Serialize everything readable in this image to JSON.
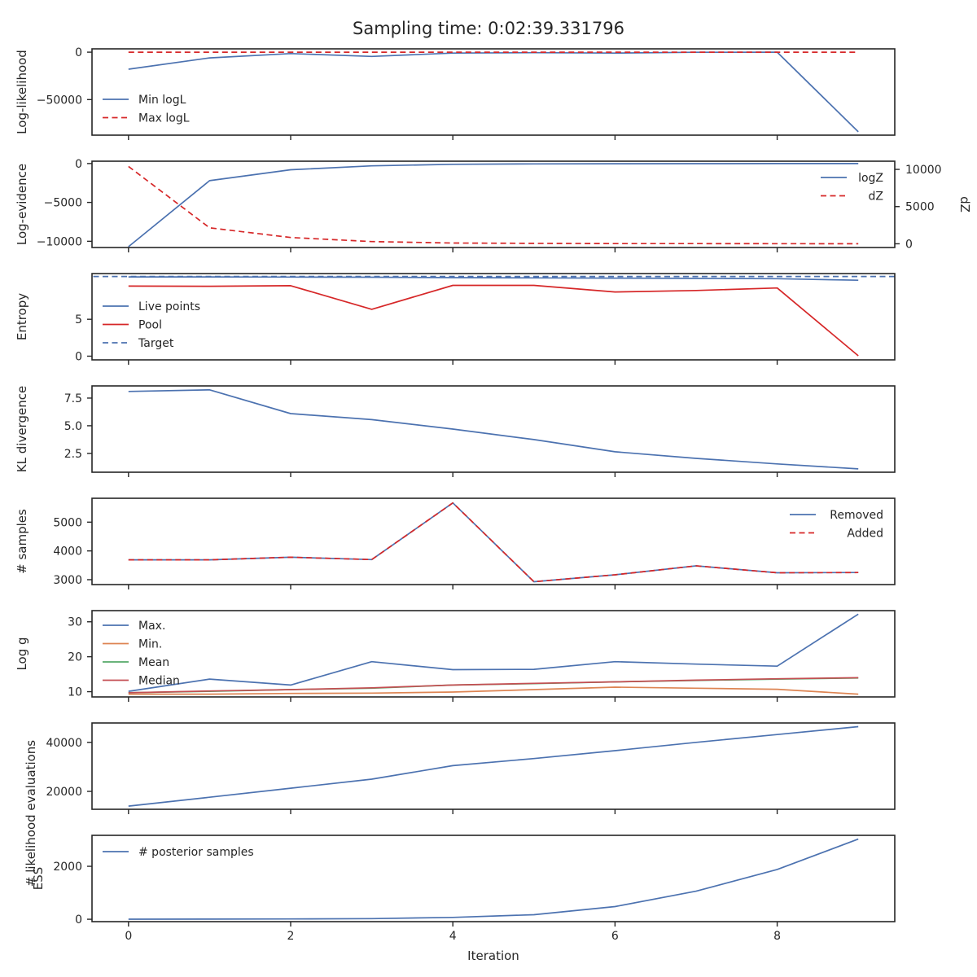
{
  "figure": {
    "title": "Sampling time: 0:02:39.331796",
    "xlabel": "Iteration",
    "x_ticks": [
      0,
      2,
      4,
      6,
      8
    ],
    "xlim": [
      -0.45,
      9.45
    ]
  },
  "colors": {
    "blue": "#4c72b0",
    "red": "#d62728",
    "orange": "#dd8452",
    "green": "#55a868",
    "brick": "#c44e52"
  },
  "chart_data": [
    {
      "type": "line",
      "ylabel": "Log-likelihood",
      "ylim": [
        -87500,
        3500
      ],
      "yticks": [
        0,
        -50000
      ],
      "ytick_labels": [
        "0",
        "−50000"
      ],
      "legend_position": "lower-left",
      "x": [
        0,
        1,
        2,
        3,
        4,
        5,
        6,
        7,
        8,
        9
      ],
      "series": [
        {
          "name": "Min logL",
          "style": "solid",
          "color": "#4c72b0",
          "values": [
            -18000,
            -6000,
            -1500,
            -4500,
            -1000,
            -500,
            -1000,
            -100,
            -50,
            -84000
          ]
        },
        {
          "name": "Max logL",
          "style": "dashed",
          "color": "#d62728",
          "values": [
            0,
            0,
            0,
            0,
            0,
            0,
            0,
            0,
            0,
            0
          ]
        }
      ]
    },
    {
      "type": "line",
      "ylabel": "Log-evidence",
      "ylabel_right": "dZ",
      "ylim": [
        -10800,
        300
      ],
      "yticks": [
        0,
        -5000,
        -10000
      ],
      "ytick_labels": [
        "0",
        "−5000",
        "−10000"
      ],
      "ylim_right": [
        -500,
        11100
      ],
      "yticks_right": [
        10000,
        5000,
        0
      ],
      "ytick_labels_right": [
        "10000",
        "5000",
        "0"
      ],
      "legend_position": "upper-right",
      "x": [
        0,
        1,
        2,
        3,
        4,
        5,
        6,
        7,
        8,
        9
      ],
      "series": [
        {
          "name": "logZ",
          "style": "solid",
          "color": "#4c72b0",
          "axis": "left",
          "values": [
            -10700,
            -2200,
            -800,
            -300,
            -100,
            -50,
            -20,
            -10,
            -5,
            -2
          ]
        },
        {
          "name": "dZ",
          "style": "dashed",
          "color": "#d62728",
          "axis": "right",
          "values": [
            10400,
            2150,
            850,
            300,
            100,
            60,
            30,
            20,
            10,
            5
          ]
        }
      ]
    },
    {
      "type": "line",
      "ylabel": "Entropy",
      "ylim": [
        -0.5,
        11.2
      ],
      "yticks": [
        0,
        5
      ],
      "ytick_labels": [
        "0",
        "5"
      ],
      "legend_position": "lower-left",
      "x": [
        0,
        1,
        2,
        3,
        4,
        5,
        6,
        7,
        8,
        9
      ],
      "series": [
        {
          "name": "Live points",
          "style": "solid",
          "color": "#4c72b0",
          "values": [
            10.75,
            10.75,
            10.72,
            10.7,
            10.65,
            10.62,
            10.58,
            10.55,
            10.5,
            10.3
          ]
        },
        {
          "name": "Pool",
          "style": "solid",
          "color": "#d62728",
          "values": [
            9.5,
            9.48,
            9.55,
            6.35,
            9.6,
            9.6,
            8.7,
            8.9,
            9.25,
            0.05
          ]
        },
        {
          "name": "Target",
          "style": "dashed",
          "color": "#4c72b0",
          "hline": 10.8
        }
      ]
    },
    {
      "type": "line",
      "ylabel": "KL divergence",
      "ylim": [
        0.8,
        8.6
      ],
      "yticks": [
        2.5,
        5.0,
        7.5
      ],
      "ytick_labels": [
        "2.5",
        "5.0",
        "7.5"
      ],
      "x": [
        0,
        1,
        2,
        3,
        4,
        5,
        6,
        7,
        8,
        9
      ],
      "series": [
        {
          "style": "solid",
          "color": "#4c72b0",
          "values": [
            8.1,
            8.25,
            6.1,
            5.55,
            4.7,
            3.75,
            2.65,
            2.05,
            1.55,
            1.1
          ]
        }
      ]
    },
    {
      "type": "line",
      "ylabel": "# samples",
      "ylim": [
        2830,
        5830
      ],
      "yticks": [
        3000,
        4000,
        5000
      ],
      "ytick_labels": [
        "3000",
        "4000",
        "5000"
      ],
      "legend_position": "upper-right",
      "x": [
        0,
        1,
        2,
        3,
        4,
        5,
        6,
        7,
        8,
        9
      ],
      "series": [
        {
          "name": "Removed",
          "style": "solid",
          "color": "#4c72b0",
          "values": [
            3690,
            3690,
            3780,
            3700,
            5670,
            2930,
            3170,
            3480,
            3240,
            3250
          ]
        },
        {
          "name": "Added",
          "style": "dashed",
          "color": "#d62728",
          "values": [
            3690,
            3690,
            3780,
            3700,
            5670,
            2930,
            3170,
            3480,
            3240,
            3250
          ]
        }
      ]
    },
    {
      "type": "line",
      "ylabel": "Log g",
      "ylim": [
        8.5,
        33.2
      ],
      "yticks": [
        10,
        20,
        30
      ],
      "ytick_labels": [
        "10",
        "20",
        "30"
      ],
      "legend_position": "upper-left",
      "x": [
        0,
        1,
        2,
        3,
        4,
        5,
        6,
        7,
        8,
        9
      ],
      "series": [
        {
          "name": "Max.",
          "style": "solid",
          "color": "#4c72b0",
          "values": [
            10.1,
            13.6,
            11.9,
            18.6,
            16.3,
            16.4,
            18.6,
            17.9,
            17.3,
            32.2
          ]
        },
        {
          "name": "Min.",
          "style": "solid",
          "color": "#dd8452",
          "values": [
            9.3,
            9.3,
            9.5,
            9.6,
            9.9,
            10.6,
            11.3,
            11.0,
            10.7,
            9.3
          ]
        },
        {
          "name": "Mean",
          "style": "solid",
          "color": "#55a868",
          "values": [
            9.7,
            10.1,
            10.6,
            11.0,
            11.9,
            12.3,
            12.8,
            13.2,
            13.6,
            13.9
          ]
        },
        {
          "name": "Median",
          "style": "solid",
          "color": "#c44e52",
          "values": [
            9.7,
            10.2,
            10.6,
            11.1,
            11.9,
            12.4,
            12.8,
            13.3,
            13.7,
            14.0
          ]
        }
      ]
    },
    {
      "type": "line",
      "ylabel": "# likelihood evaluations",
      "ylim": [
        12700,
        47900
      ],
      "yticks": [
        20000,
        40000
      ],
      "ytick_labels": [
        "20000",
        "40000"
      ],
      "x": [
        0,
        1,
        2,
        3,
        4,
        5,
        6,
        7,
        8,
        9
      ],
      "series": [
        {
          "style": "solid",
          "color": "#4c72b0",
          "values": [
            14000,
            17600,
            21300,
            25000,
            30500,
            33400,
            36600,
            40000,
            43200,
            46400
          ]
        }
      ]
    },
    {
      "type": "line",
      "ylabel": "ESS",
      "ylim": [
        -90,
        3170
      ],
      "yticks": [
        0,
        2000
      ],
      "ytick_labels": [
        "0",
        "2000"
      ],
      "legend_position": "upper-left",
      "x": [
        0,
        1,
        2,
        3,
        4,
        5,
        6,
        7,
        8,
        9
      ],
      "series": [
        {
          "name": "# posterior samples",
          "style": "solid",
          "color": "#4c72b0",
          "values": [
            2,
            5,
            10,
            25,
            70,
            170,
            480,
            1060,
            1880,
            3030
          ]
        }
      ]
    }
  ]
}
